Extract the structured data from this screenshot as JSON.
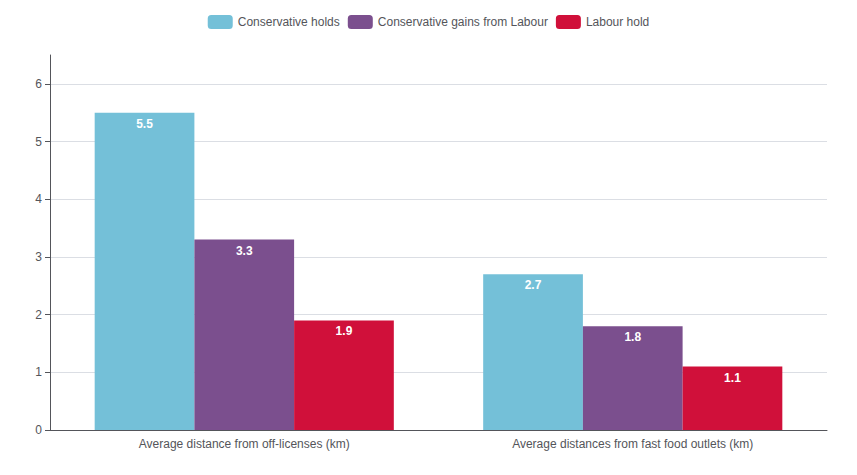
{
  "chart_data": {
    "type": "bar",
    "categories": [
      "Average distance from off-licenses (km)",
      "Average distances from fast food outlets (km)"
    ],
    "series": [
      {
        "name": "Conservative holds",
        "color": "#74C0D8",
        "values": [
          5.5,
          2.7
        ]
      },
      {
        "name": "Conservative gains from Labour",
        "color": "#7B4F8E",
        "values": [
          3.3,
          1.8
        ]
      },
      {
        "name": "Labour hold",
        "color": "#D0103A",
        "values": [
          1.9,
          1.1
        ]
      }
    ],
    "ylim": [
      0,
      6.5
    ],
    "yticks": [
      0,
      1,
      2,
      3,
      4,
      5,
      6
    ],
    "grid": true,
    "legend": "top",
    "data_labels": true
  }
}
